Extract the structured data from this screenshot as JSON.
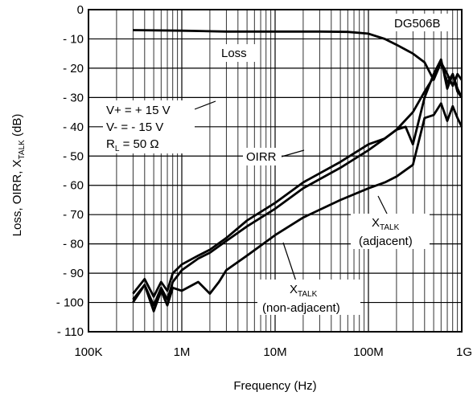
{
  "chart_data": {
    "type": "line",
    "title": "",
    "xlabel": "Frequency (Hz)",
    "ylabel": "Loss, OIRR, X_TALK (dB)",
    "ylabel_parts": {
      "main": "Loss, OIRR, X",
      "sub": "TALK",
      "tail": " (dB)"
    },
    "x_scale": "log",
    "xlim": [
      100000,
      1000000000
    ],
    "ylim": [
      -110,
      0
    ],
    "grid": true,
    "x_ticks": [
      {
        "value": 100000,
        "label": "100K"
      },
      {
        "value": 1000000,
        "label": "1M"
      },
      {
        "value": 10000000,
        "label": "10M"
      },
      {
        "value": 100000000,
        "label": "100M"
      },
      {
        "value": 1000000000,
        "label": "1G"
      }
    ],
    "y_ticks": [
      {
        "value": 0,
        "label": "0"
      },
      {
        "value": -10,
        "label": "- 10"
      },
      {
        "value": -20,
        "label": "- 20"
      },
      {
        "value": -30,
        "label": "- 30"
      },
      {
        "value": -40,
        "label": "- 40"
      },
      {
        "value": -50,
        "label": "- 50"
      },
      {
        "value": -60,
        "label": "- 60"
      },
      {
        "value": -70,
        "label": "- 70"
      },
      {
        "value": -80,
        "label": "- 80"
      },
      {
        "value": -90,
        "label": "- 90"
      },
      {
        "value": -100,
        "label": "- 100"
      },
      {
        "value": -110,
        "label": "- 110"
      }
    ],
    "device_label": "DG506B",
    "conditions": [
      "V+ = + 15 V",
      "V- = - 15 V"
    ],
    "condition_rl": {
      "main": "R",
      "sub": "L",
      "tail": " = 50 Ω"
    },
    "series": [
      {
        "name": "Loss",
        "x": [
          300000,
          1000000,
          3000000,
          10000000,
          30000000,
          60000000,
          100000000,
          150000000,
          200000000,
          300000000,
          400000000,
          500000000,
          600000000,
          700000000,
          800000000,
          900000000,
          1000000000
        ],
        "y": [
          -7,
          -7.2,
          -7.5,
          -7.5,
          -7.5,
          -7.6,
          -8.2,
          -10,
          -12,
          -15,
          -18,
          -24,
          -18,
          -22,
          -26,
          -22,
          -24
        ]
      },
      {
        "name": "OIRR",
        "x": [
          300000,
          400000,
          500000,
          600000,
          700000,
          800000,
          1000000,
          1500000,
          2000000,
          3000000,
          5000000,
          10000000,
          20000000,
          50000000,
          100000000,
          150000000,
          200000000,
          300000000,
          400000000,
          500000000,
          600000000,
          700000000,
          800000000,
          900000000,
          1000000000
        ],
        "y": [
          -97,
          -92,
          -98,
          -93,
          -96,
          -90,
          -87,
          -84,
          -82,
          -78,
          -72,
          -66,
          -59,
          -52,
          -46,
          -44,
          -41,
          -35,
          -28,
          -23,
          -18,
          -25,
          -22,
          -27,
          -30
        ]
      },
      {
        "name": "X_TALK (adjacent)",
        "label_parts": {
          "main": "X",
          "sub": "TALK",
          "tail": "(adjacent)"
        },
        "x": [
          300000,
          400000,
          500000,
          600000,
          700000,
          800000,
          1000000,
          1500000,
          2000000,
          3000000,
          5000000,
          10000000,
          20000000,
          50000000,
          100000000,
          150000000,
          200000000,
          250000000,
          300000000,
          400000000,
          500000000,
          600000000,
          700000000,
          800000000,
          900000000,
          1000000000
        ],
        "y": [
          -99,
          -94,
          -101,
          -95,
          -99,
          -93,
          -89,
          -85,
          -83,
          -79,
          -74,
          -68,
          -61,
          -54,
          -48,
          -44,
          -41,
          -40,
          -46,
          -30,
          -22,
          -17,
          -27,
          -22,
          -28,
          -30
        ]
      },
      {
        "name": "X_TALK (non-adjacent)",
        "label_parts": {
          "main": "X",
          "sub": "TALK",
          "tail": "(non-adjacent)"
        },
        "x": [
          300000,
          400000,
          500000,
          600000,
          700000,
          800000,
          1000000,
          1500000,
          2000000,
          2500000,
          3000000,
          5000000,
          10000000,
          20000000,
          50000000,
          100000000,
          150000000,
          200000000,
          300000000,
          400000000,
          500000000,
          600000000,
          700000000,
          800000000,
          900000000,
          1000000000
        ],
        "y": [
          -100,
          -94,
          -103,
          -96,
          -101,
          -95,
          -96,
          -93,
          -97,
          -93,
          -89,
          -84,
          -77,
          -71,
          -65,
          -61,
          -59,
          -57,
          -53,
          -37,
          -36,
          -32,
          -38,
          -33,
          -37,
          -40
        ]
      }
    ]
  }
}
